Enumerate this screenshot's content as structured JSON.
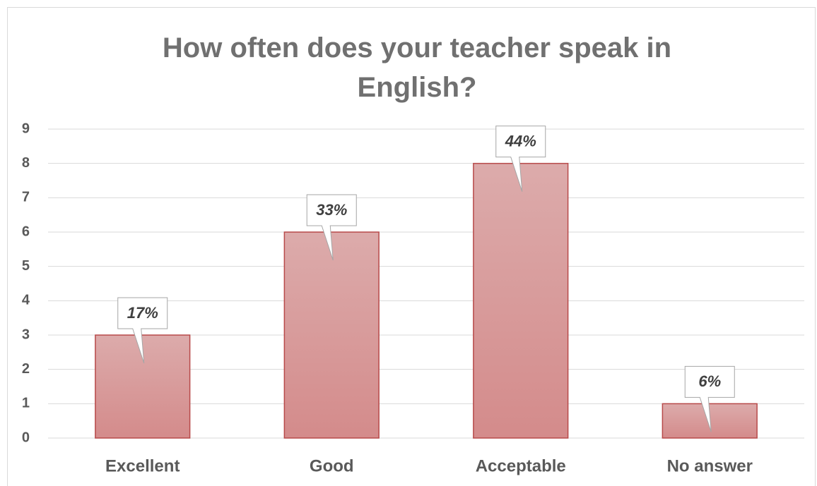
{
  "chart_data": {
    "type": "bar",
    "title": "How often does your teacher speak in English?",
    "categories": [
      "Excellent",
      "Good",
      "Acceptable",
      "No answer"
    ],
    "values": [
      3,
      6,
      8,
      1
    ],
    "value_labels": [
      "17%",
      "33%",
      "44%",
      "6%"
    ],
    "color": "#d79595",
    "ylim": [
      0,
      9
    ],
    "yticks": [
      0,
      1,
      2,
      3,
      4,
      5,
      6,
      7,
      8,
      9
    ],
    "grid": true
  }
}
